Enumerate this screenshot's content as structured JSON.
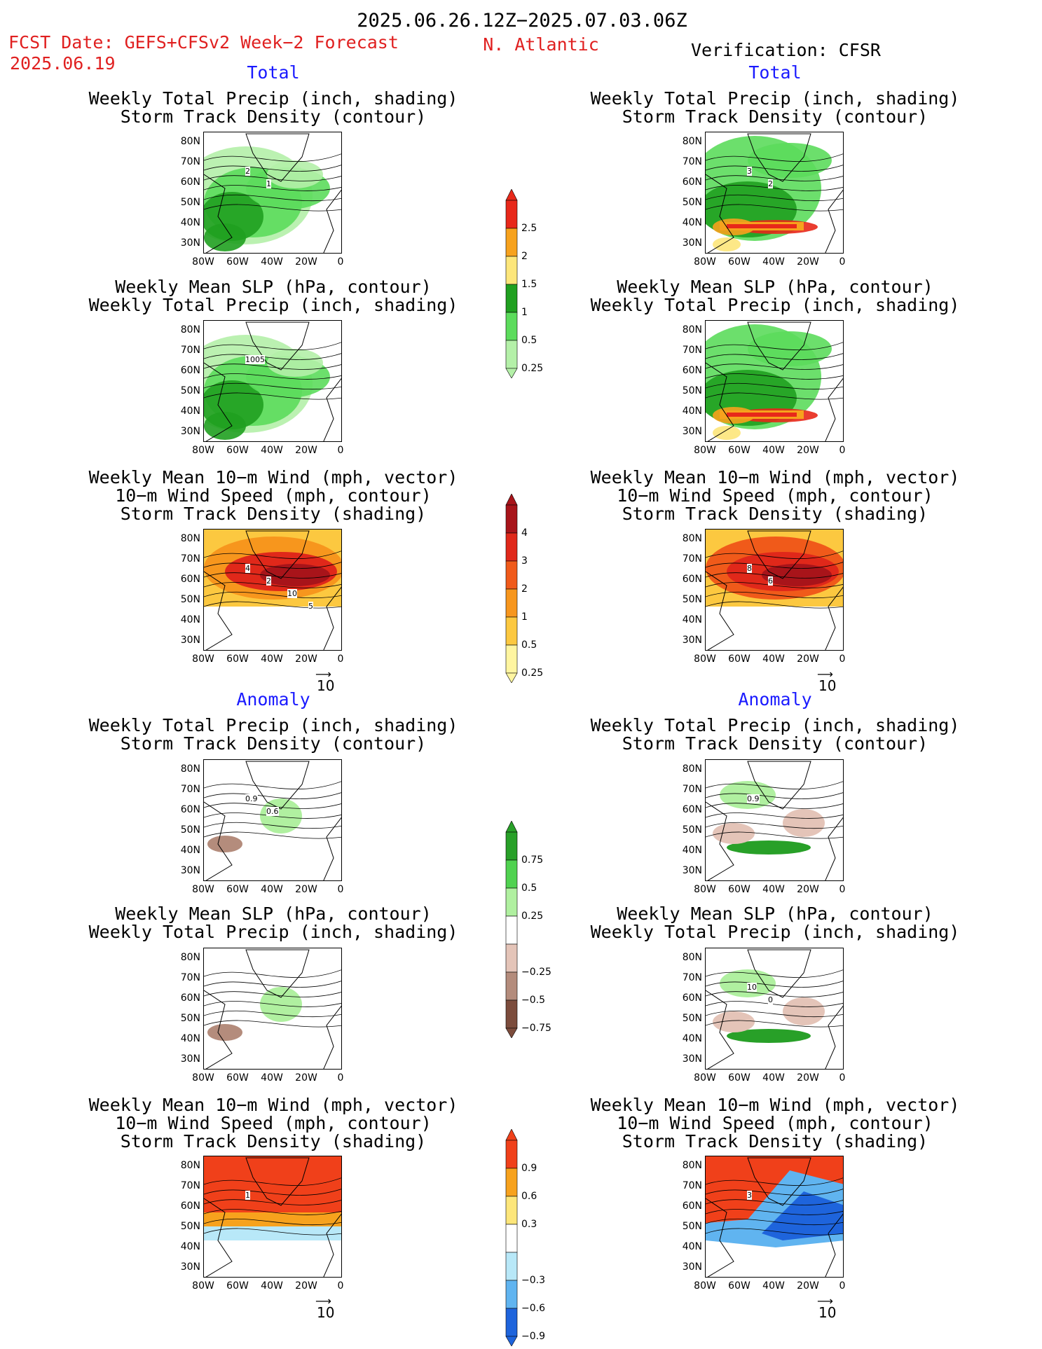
{
  "header": {
    "period": "2025.06.26.12Z−2025.07.03.06Z",
    "fcst_line1": "FCST Date: GEFS+CFSv2 Week−2 Forecast",
    "fcst_line2": "2025.06.19",
    "region": "N. Atlantic",
    "verification": "Verification: CFSR"
  },
  "sections": {
    "total": "Total",
    "anomaly": "Anomaly"
  },
  "titles": {
    "precip_std": [
      "Weekly Total Precip (inch, shading)",
      "Storm Track Density (contour)"
    ],
    "slp_precip": [
      "Weekly Mean SLP (hPa, contour)",
      "Weekly Total Precip (inch, shading)"
    ],
    "wind_std": [
      "Weekly Mean 10−m Wind (mph, vector)",
      "10−m Wind Speed (mph, contour)",
      "Storm Track Density (shading)"
    ]
  },
  "axes": {
    "lat_labels": [
      "80N",
      "70N",
      "60N",
      "50N",
      "40N",
      "30N"
    ],
    "lon_labels": [
      "80W",
      "60W",
      "40W",
      "20W",
      "0"
    ]
  },
  "vector_ref": "10",
  "colorbars": {
    "precip_total": {
      "labels": [
        "2.5",
        "2",
        "1.5",
        "1",
        "0.5",
        "0.25"
      ],
      "colors": [
        "#e8281a",
        "#f7a21d",
        "#fde67a",
        "#20a020",
        "#5cdc5c",
        "#b4f0a8"
      ]
    },
    "std_total": {
      "labels": [
        "4",
        "3",
        "2",
        "1",
        "0.5",
        "0.25"
      ],
      "colors": [
        "#a8141a",
        "#e0281a",
        "#f05a1a",
        "#f7961d",
        "#fcc840",
        "#fff5a0"
      ]
    },
    "precip_anom": {
      "labels": [
        "0.75",
        "0.5",
        "0.25",
        "−0.25",
        "−0.5",
        "−0.75"
      ],
      "colors": [
        "#28a028",
        "#50d250",
        "#b0f0a0",
        "#ffffff",
        "#e4c4b8",
        "#b48c7c",
        "#7c4c3c"
      ]
    },
    "std_anom": {
      "labels": [
        "0.9",
        "0.6",
        "0.3",
        "−0.3",
        "−0.6",
        "−0.9"
      ],
      "colors": [
        "#f0401a",
        "#f7a21d",
        "#fde67a",
        "#ffffff",
        "#b8e8f8",
        "#60b4f0",
        "#1e64dc"
      ]
    }
  },
  "contour_labels": {
    "p1_left": [
      "2",
      "1"
    ],
    "p1_right": [
      "3",
      "2"
    ],
    "p2_left": [
      "1005"
    ],
    "p3_left": [
      "4",
      "2",
      "10",
      "5"
    ],
    "p3_right": [
      "8",
      "6"
    ],
    "p4_left": [
      "0.9",
      "0.6"
    ],
    "p4_right": [
      "0.9"
    ],
    "p5_right": [
      "10",
      "0"
    ],
    "p6_left": [
      "1"
    ],
    "p6_right": [
      "3"
    ]
  },
  "legend_colors": {
    "total_color": "#1a1aff",
    "header_red": "#e02020"
  }
}
